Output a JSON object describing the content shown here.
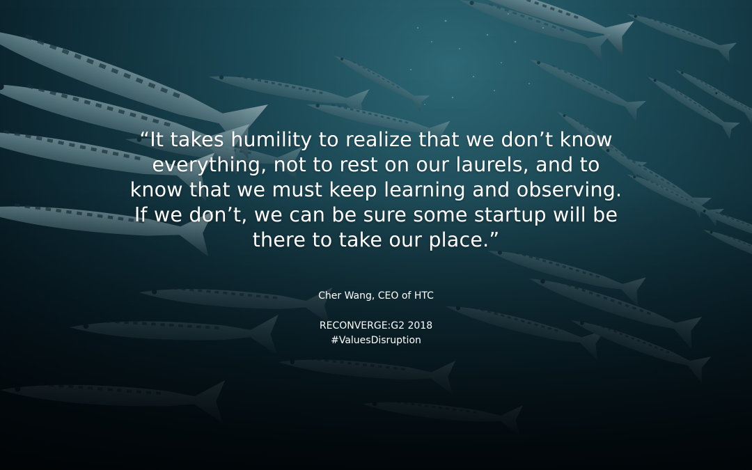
{
  "quote": {
    "text": "“It takes humility to realize that we don’t know\neverything, not to rest on our laurels, and to\nknow that we must keep learning and observing.\nIf we don’t, we can be sure some startup will be\nthere to take our place.”"
  },
  "attribution": {
    "text": "Cher Wang, CEO of HTC"
  },
  "event": {
    "name": "RECONVERGE:G2 2018",
    "hashtag": "#ValuesDisruption"
  },
  "colors": {
    "text": "#ffffff",
    "water_light": "#2f6a78",
    "water_dark": "#050d12"
  }
}
